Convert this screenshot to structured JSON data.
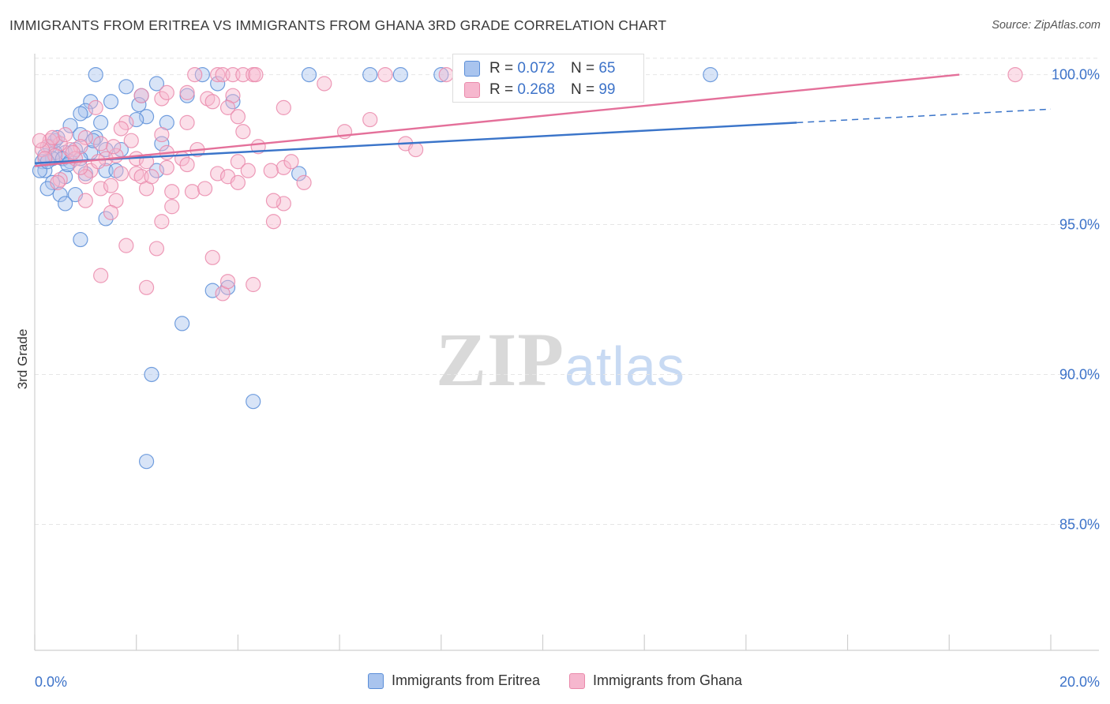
{
  "header": {
    "title": "IMMIGRANTS FROM ERITREA VS IMMIGRANTS FROM GHANA 3RD GRADE CORRELATION CHART",
    "source": "Source: ZipAtlas.com"
  },
  "watermark": {
    "zip": "ZIP",
    "atlas": "atlas"
  },
  "stats": [
    {
      "r_label": "R =",
      "r_value": "0.072",
      "n_label": "N =",
      "n_value": "65"
    },
    {
      "r_label": "R =",
      "r_value": "0.268",
      "n_label": "N =",
      "n_value": "99"
    }
  ],
  "colors": {
    "eritrea_fill": "#a9c4ee",
    "eritrea_stroke": "#5b8ed8",
    "eritrea_line": "#3a74c9",
    "ghana_fill": "#f6b7ce",
    "ghana_stroke": "#ea8aab",
    "ghana_line": "#e4709a",
    "tick_label": "#3d73c9",
    "grid": "#e6e6e6"
  },
  "chart_data": {
    "type": "scatter",
    "xlabel": "",
    "ylabel": "3rd Grade",
    "xlim": [
      0,
      20
    ],
    "ylim": [
      80.8,
      100.7
    ],
    "x_ticks": [
      0,
      2,
      4,
      6,
      8,
      10,
      12,
      14,
      16,
      18,
      20
    ],
    "x_tick_labels": {
      "0": "0.0%",
      "20": "20.0%"
    },
    "y_ticks": [
      85,
      90,
      95,
      100
    ],
    "y_tick_labels": [
      "85.0%",
      "90.0%",
      "95.0%",
      "100.0%"
    ],
    "grid": true,
    "legend_position": "bottom",
    "series": [
      {
        "name": "Immigrants from Eritrea",
        "color": "#5b8ed8",
        "trend": {
          "x": [
            0,
            15
          ],
          "y": [
            97.05,
            98.4
          ],
          "dashed_to": [
            20,
            98.85
          ]
        },
        "points": [
          [
            1.2,
            100
          ],
          [
            2.4,
            99.7
          ],
          [
            3.6,
            99.7
          ],
          [
            5.4,
            100
          ],
          [
            6.6,
            100
          ],
          [
            7.2,
            100
          ],
          [
            8.0,
            100
          ],
          [
            13.3,
            100
          ],
          [
            1.1,
            99.1
          ],
          [
            1.5,
            99.1
          ],
          [
            2.1,
            99.3
          ],
          [
            2.2,
            98.6
          ],
          [
            2.6,
            98.4
          ],
          [
            3.0,
            99.3
          ],
          [
            3.9,
            99.1
          ],
          [
            1.0,
            98.8
          ],
          [
            0.9,
            98.7
          ],
          [
            0.7,
            98.3
          ],
          [
            1.3,
            98.4
          ],
          [
            0.9,
            98.0
          ],
          [
            1.2,
            97.9
          ],
          [
            1.4,
            97.5
          ],
          [
            2.0,
            98.5
          ],
          [
            2.5,
            97.7
          ],
          [
            1.1,
            97.4
          ],
          [
            0.6,
            97.4
          ],
          [
            0.8,
            97.5
          ],
          [
            0.3,
            97.6
          ],
          [
            0.4,
            97.4
          ],
          [
            0.15,
            97.1
          ],
          [
            0.35,
            97.2
          ],
          [
            0.55,
            97.2
          ],
          [
            0.7,
            97.1
          ],
          [
            0.9,
            97.2
          ],
          [
            0.2,
            96.8
          ],
          [
            0.1,
            96.8
          ],
          [
            1.4,
            96.8
          ],
          [
            1.0,
            96.7
          ],
          [
            0.6,
            96.6
          ],
          [
            0.35,
            96.4
          ],
          [
            2.4,
            96.8
          ],
          [
            0.25,
            96.2
          ],
          [
            0.5,
            96.0
          ],
          [
            0.8,
            96.0
          ],
          [
            0.6,
            95.7
          ],
          [
            1.4,
            95.2
          ],
          [
            0.9,
            94.5
          ],
          [
            5.2,
            96.7
          ],
          [
            3.5,
            92.8
          ],
          [
            3.8,
            92.9
          ],
          [
            2.9,
            91.7
          ],
          [
            2.3,
            90.0
          ],
          [
            4.3,
            89.1
          ],
          [
            2.2,
            87.1
          ],
          [
            0.4,
            97.8
          ],
          [
            1.7,
            97.5
          ],
          [
            0.2,
            97.3
          ],
          [
            1.8,
            99.6
          ],
          [
            3.3,
            100
          ],
          [
            0.45,
            97.9
          ],
          [
            0.65,
            97.0
          ],
          [
            1.15,
            97.8
          ],
          [
            1.6,
            96.8
          ],
          [
            2.05,
            99.0
          ],
          [
            0.25,
            97.1
          ]
        ]
      },
      {
        "name": "Immigrants from Ghana",
        "color": "#ea8aab",
        "trend": {
          "x": [
            0,
            18.2
          ],
          "y": [
            96.95,
            100
          ]
        },
        "points": [
          [
            3.15,
            100
          ],
          [
            3.6,
            100
          ],
          [
            3.7,
            100
          ],
          [
            3.9,
            100
          ],
          [
            4.1,
            100
          ],
          [
            4.3,
            100
          ],
          [
            4.35,
            100
          ],
          [
            6.9,
            100
          ],
          [
            8.1,
            100
          ],
          [
            19.3,
            100
          ],
          [
            5.7,
            99.7
          ],
          [
            2.1,
            99.3
          ],
          [
            2.5,
            99.2
          ],
          [
            2.6,
            99.4
          ],
          [
            3.0,
            99.4
          ],
          [
            3.4,
            99.2
          ],
          [
            3.5,
            99.1
          ],
          [
            3.9,
            99.3
          ],
          [
            3.8,
            98.9
          ],
          [
            4.0,
            98.6
          ],
          [
            4.9,
            98.9
          ],
          [
            6.6,
            98.5
          ],
          [
            1.2,
            98.9
          ],
          [
            1.8,
            98.4
          ],
          [
            1.7,
            98.2
          ],
          [
            2.5,
            98.0
          ],
          [
            3.0,
            98.4
          ],
          [
            4.1,
            98.1
          ],
          [
            6.1,
            98.1
          ],
          [
            7.3,
            97.7
          ],
          [
            7.5,
            97.5
          ],
          [
            4.4,
            97.6
          ],
          [
            1.0,
            97.9
          ],
          [
            1.3,
            97.7
          ],
          [
            0.9,
            97.6
          ],
          [
            0.7,
            97.5
          ],
          [
            0.5,
            97.7
          ],
          [
            0.3,
            97.8
          ],
          [
            0.25,
            97.6
          ],
          [
            0.15,
            97.5
          ],
          [
            0.1,
            97.8
          ],
          [
            0.4,
            97.3
          ],
          [
            0.8,
            97.2
          ],
          [
            1.4,
            97.2
          ],
          [
            1.6,
            97.3
          ],
          [
            2.0,
            97.2
          ],
          [
            2.2,
            97.1
          ],
          [
            2.6,
            97.4
          ],
          [
            2.9,
            97.2
          ],
          [
            3.0,
            97.0
          ],
          [
            4.0,
            97.1
          ],
          [
            4.9,
            96.9
          ],
          [
            2.6,
            96.9
          ],
          [
            2.0,
            96.7
          ],
          [
            2.1,
            96.6
          ],
          [
            1.1,
            96.8
          ],
          [
            1.0,
            96.6
          ],
          [
            0.5,
            96.5
          ],
          [
            1.3,
            96.2
          ],
          [
            1.5,
            96.3
          ],
          [
            2.2,
            96.2
          ],
          [
            3.1,
            96.1
          ],
          [
            3.6,
            96.7
          ],
          [
            3.8,
            96.6
          ],
          [
            4.0,
            96.4
          ],
          [
            4.2,
            96.8
          ],
          [
            2.7,
            96.1
          ],
          [
            1.6,
            95.8
          ],
          [
            1.0,
            95.8
          ],
          [
            2.7,
            95.6
          ],
          [
            4.9,
            95.7
          ],
          [
            4.7,
            95.8
          ],
          [
            4.7,
            95.1
          ],
          [
            2.5,
            95.1
          ],
          [
            1.5,
            95.4
          ],
          [
            1.8,
            94.3
          ],
          [
            2.4,
            94.2
          ],
          [
            3.5,
            93.9
          ],
          [
            1.3,
            93.3
          ],
          [
            2.2,
            92.9
          ],
          [
            3.7,
            92.7
          ],
          [
            3.8,
            93.1
          ],
          [
            4.3,
            93.0
          ],
          [
            0.35,
            97.9
          ],
          [
            0.6,
            98.0
          ],
          [
            0.75,
            97.4
          ],
          [
            0.2,
            97.2
          ],
          [
            0.9,
            96.9
          ],
          [
            1.25,
            97.1
          ],
          [
            1.55,
            97.6
          ],
          [
            2.3,
            96.6
          ],
          [
            3.2,
            97.5
          ],
          [
            3.35,
            96.2
          ],
          [
            4.65,
            96.8
          ],
          [
            5.05,
            97.1
          ],
          [
            5.3,
            96.4
          ],
          [
            1.7,
            96.7
          ],
          [
            0.45,
            96.4
          ],
          [
            1.9,
            97.8
          ]
        ]
      }
    ]
  }
}
